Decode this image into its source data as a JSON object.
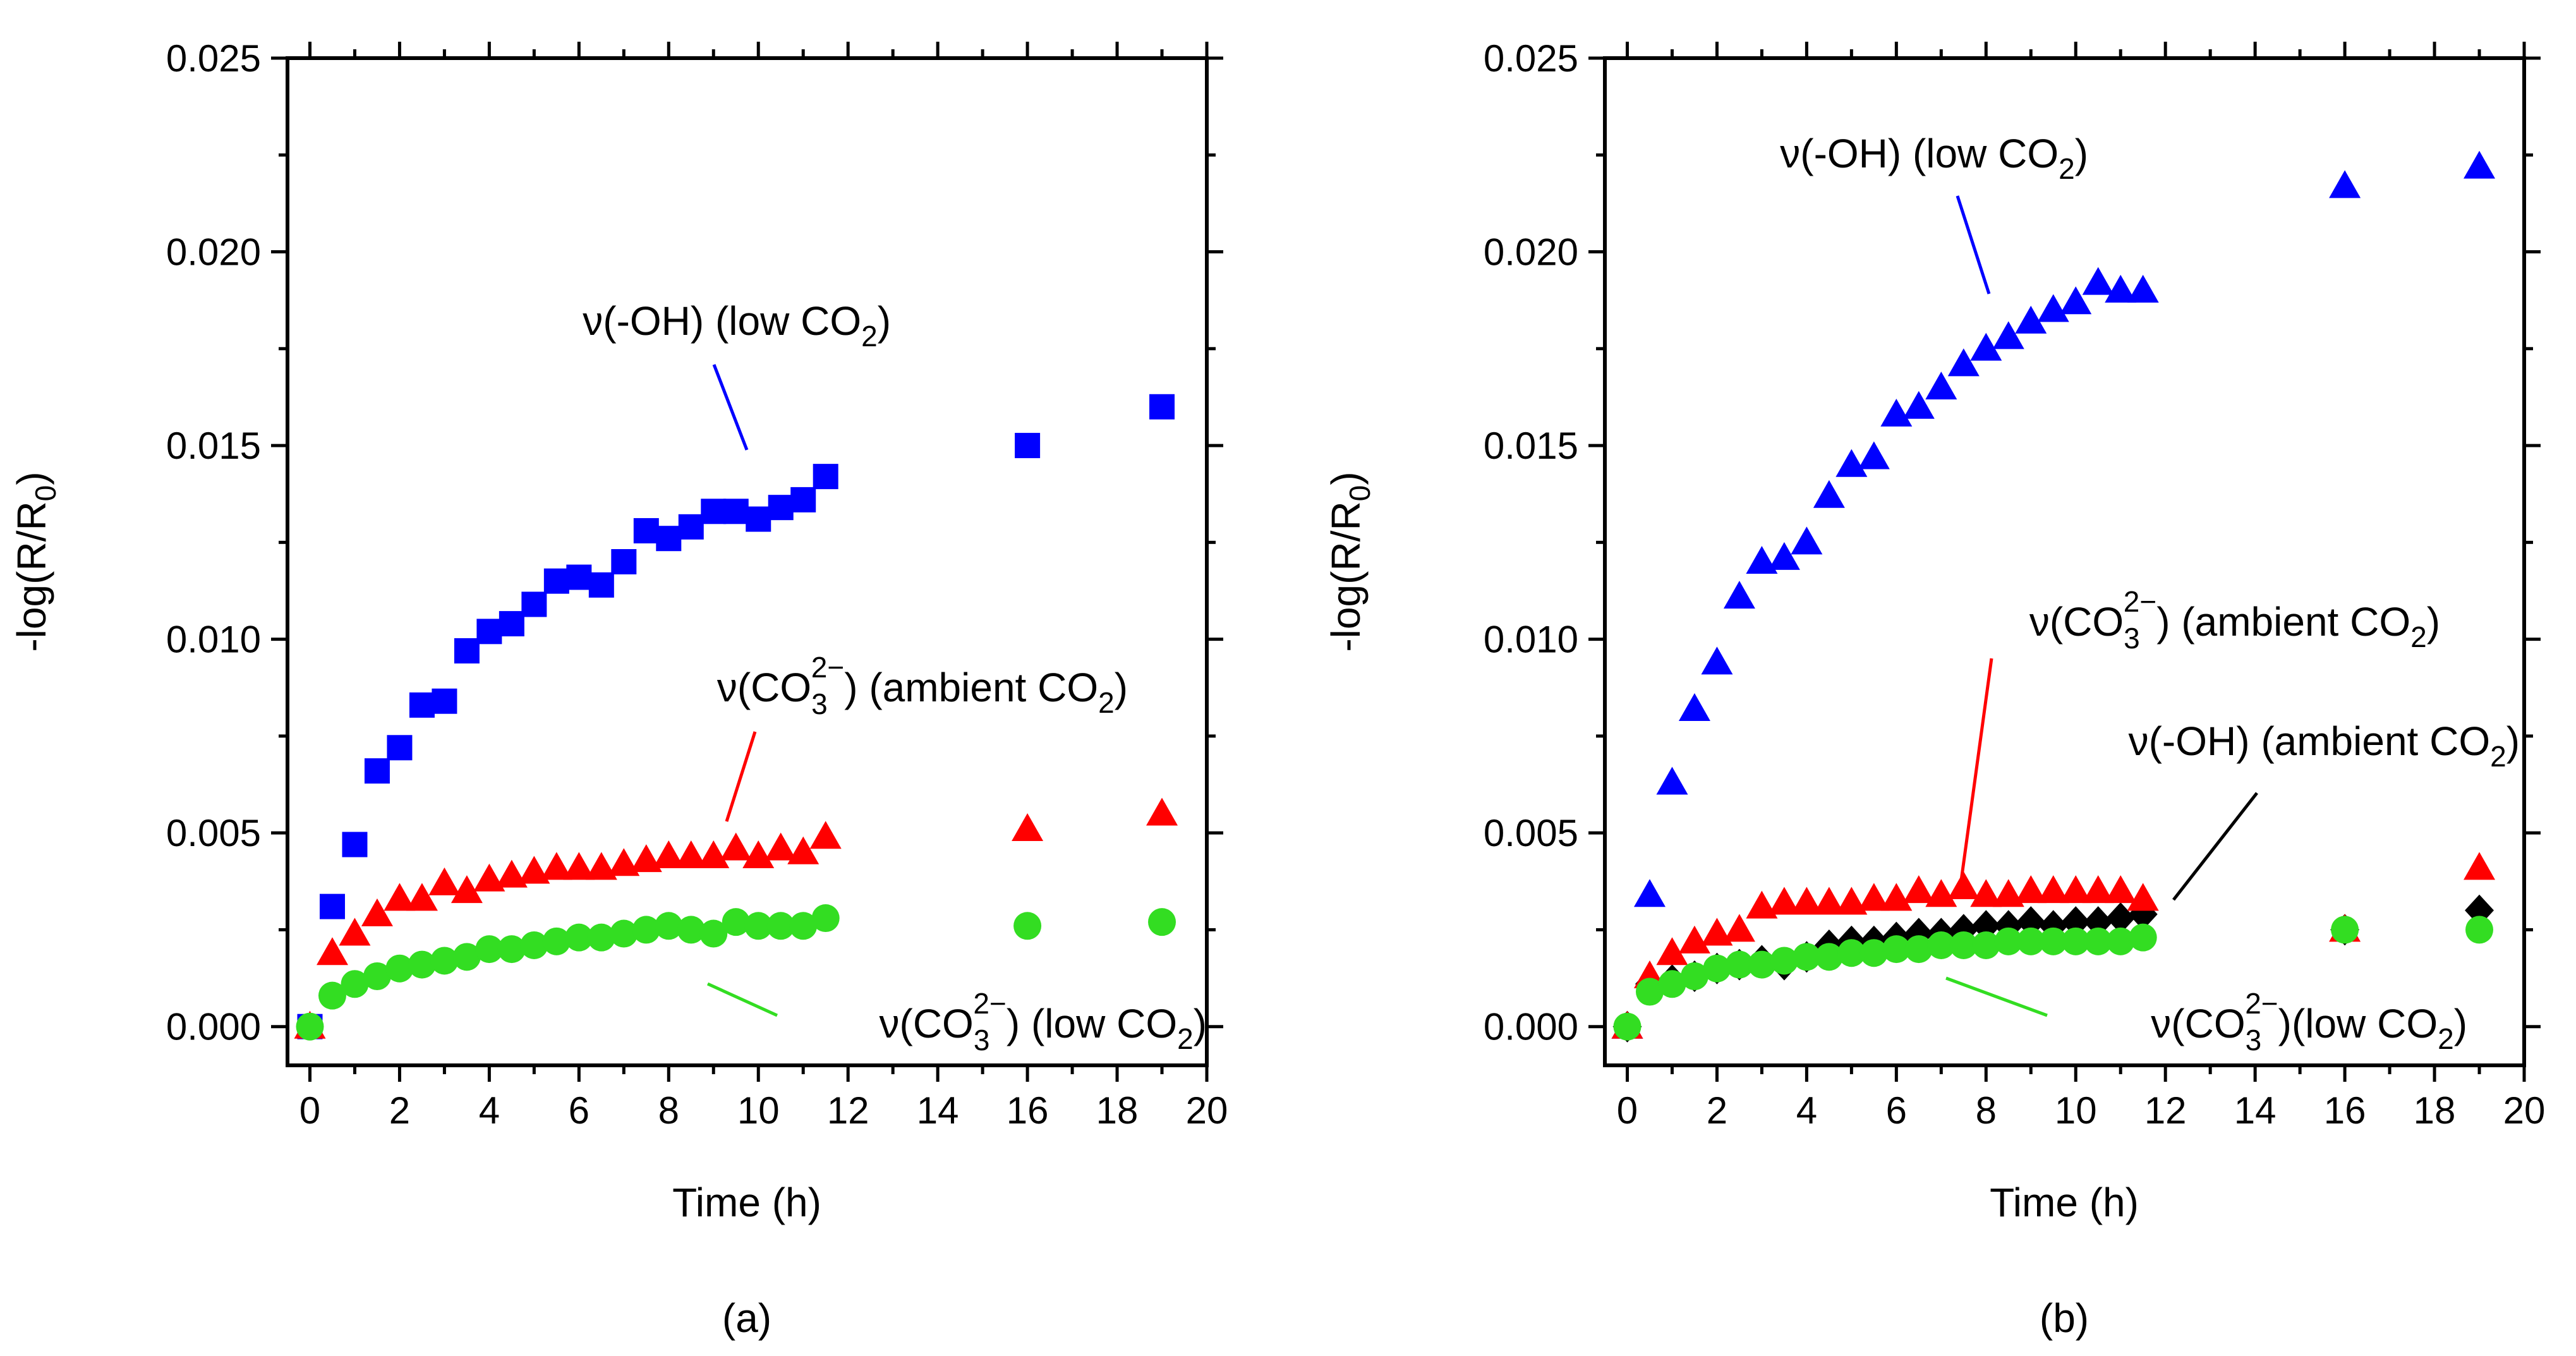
{
  "chart_data": [
    {
      "type": "scatter",
      "caption": "(a)",
      "xlabel": "Time (h)",
      "ylabel": "-log(R/R",
      "ylabel_sub": "0",
      "xlim": [
        -0.5,
        20
      ],
      "ylim": [
        -0.001,
        0.025
      ],
      "xticks": [
        0,
        2,
        4,
        6,
        8,
        10,
        12,
        14,
        16,
        18,
        20
      ],
      "yticks": [
        "0.000",
        "0.005",
        "0.010",
        "0.015",
        "0.020",
        "0.025"
      ],
      "grid": false,
      "series": [
        {
          "marker": "square",
          "color": "#0000ff",
          "points": [
            [
              0,
              0
            ],
            [
              0.5,
              0.0031
            ],
            [
              1,
              0.0047
            ],
            [
              1.5,
              0.0066
            ],
            [
              2,
              0.0072
            ],
            [
              2.5,
              0.0083
            ],
            [
              3,
              0.0084
            ],
            [
              3.5,
              0.0097
            ],
            [
              4,
              0.0102
            ],
            [
              4.5,
              0.0104
            ],
            [
              5,
              0.0109
            ],
            [
              5.5,
              0.0115
            ],
            [
              6,
              0.0116
            ],
            [
              6.5,
              0.0114
            ],
            [
              7,
              0.012
            ],
            [
              7.5,
              0.0128
            ],
            [
              8,
              0.0126
            ],
            [
              8.5,
              0.0129
            ],
            [
              9,
              0.0133
            ],
            [
              9.5,
              0.0133
            ],
            [
              10,
              0.0131
            ],
            [
              10.5,
              0.0134
            ],
            [
              11,
              0.0136
            ],
            [
              11.5,
              0.0142
            ],
            [
              16,
              0.015
            ],
            [
              19,
              0.016
            ]
          ]
        },
        {
          "marker": "triangle",
          "color": "#ff0000",
          "points": [
            [
              0,
              0
            ],
            [
              0.5,
              0.0019
            ],
            [
              1,
              0.0024
            ],
            [
              1.5,
              0.0029
            ],
            [
              2,
              0.0033
            ],
            [
              2.5,
              0.0033
            ],
            [
              3,
              0.0037
            ],
            [
              3.5,
              0.0035
            ],
            [
              4,
              0.0038
            ],
            [
              4.5,
              0.0039
            ],
            [
              5,
              0.004
            ],
            [
              5.5,
              0.0041
            ],
            [
              6,
              0.0041
            ],
            [
              6.5,
              0.0041
            ],
            [
              7,
              0.0042
            ],
            [
              7.5,
              0.0043
            ],
            [
              8,
              0.0044
            ],
            [
              8.5,
              0.0044
            ],
            [
              9,
              0.0044
            ],
            [
              9.5,
              0.0046
            ],
            [
              10,
              0.0044
            ],
            [
              10.5,
              0.0046
            ],
            [
              11,
              0.0045
            ],
            [
              11.5,
              0.0049
            ],
            [
              16,
              0.0051
            ],
            [
              19,
              0.0055
            ]
          ]
        },
        {
          "marker": "circle",
          "color": "#33dd22",
          "points": [
            [
              0,
              0
            ],
            [
              0.5,
              0.0008
            ],
            [
              1,
              0.0011
            ],
            [
              1.5,
              0.0013
            ],
            [
              2,
              0.0015
            ],
            [
              2.5,
              0.0016
            ],
            [
              3,
              0.0017
            ],
            [
              3.5,
              0.0018
            ],
            [
              4,
              0.002
            ],
            [
              4.5,
              0.002
            ],
            [
              5,
              0.0021
            ],
            [
              5.5,
              0.0022
            ],
            [
              6,
              0.0023
            ],
            [
              6.5,
              0.0023
            ],
            [
              7,
              0.0024
            ],
            [
              7.5,
              0.0025
            ],
            [
              8,
              0.0026
            ],
            [
              8.5,
              0.0025
            ],
            [
              9,
              0.0024
            ],
            [
              9.5,
              0.0027
            ],
            [
              10,
              0.0026
            ],
            [
              10.5,
              0.0026
            ],
            [
              11,
              0.0026
            ],
            [
              11.5,
              0.0028
            ],
            [
              16,
              0.0026
            ],
            [
              19,
              0.0027
            ]
          ]
        }
      ],
      "annotations": [
        {
          "parts": [
            "ν(-OH) (low CO",
            "2",
            ")"
          ],
          "color": "#0000ff"
        },
        {
          "parts": [
            "ν(CO",
            "3",
            "2−",
            ") (ambient CO",
            "2",
            ")"
          ],
          "color": "#ff0000"
        },
        {
          "parts": [
            "ν(CO",
            "3",
            "2−",
            ") (low CO",
            "2",
            ")"
          ],
          "color": "#33dd22"
        }
      ]
    },
    {
      "type": "scatter",
      "caption": "(b)",
      "xlabel": "Time (h)",
      "ylabel": "-log(R/R",
      "ylabel_sub": "0",
      "xlim": [
        -0.5,
        20
      ],
      "ylim": [
        -0.001,
        0.025
      ],
      "xticks": [
        0,
        2,
        4,
        6,
        8,
        10,
        12,
        14,
        16,
        18,
        20
      ],
      "yticks": [
        "0.000",
        "0.005",
        "0.010",
        "0.015",
        "0.020",
        "0.025"
      ],
      "grid": false,
      "series": [
        {
          "marker": "triangle",
          "color": "#0000ff",
          "points": [
            [
              0,
              0
            ],
            [
              0.5,
              0.0034
            ],
            [
              1,
              0.0063
            ],
            [
              1.5,
              0.0082
            ],
            [
              2,
              0.0094
            ],
            [
              2.5,
              0.0111
            ],
            [
              3,
              0.012
            ],
            [
              3.5,
              0.0121
            ],
            [
              4,
              0.0125
            ],
            [
              4.5,
              0.0137
            ],
            [
              5,
              0.0145
            ],
            [
              5.5,
              0.0147
            ],
            [
              6,
              0.0158
            ],
            [
              6.5,
              0.016
            ],
            [
              7,
              0.0165
            ],
            [
              7.5,
              0.0171
            ],
            [
              8,
              0.0175
            ],
            [
              8.5,
              0.0178
            ],
            [
              9,
              0.0182
            ],
            [
              9.5,
              0.0185
            ],
            [
              10,
              0.0187
            ],
            [
              10.5,
              0.0192
            ],
            [
              11,
              0.019
            ],
            [
              11.5,
              0.019
            ],
            [
              16,
              0.0217
            ],
            [
              19,
              0.0222
            ]
          ]
        },
        {
          "marker": "diamond",
          "color": "#000000",
          "points": [
            [
              0,
              0
            ],
            [
              0.5,
              0.0011
            ],
            [
              1,
              0.0012
            ],
            [
              1.5,
              0.0013
            ],
            [
              2,
              0.0015
            ],
            [
              2.5,
              0.0016
            ],
            [
              3,
              0.0017
            ],
            [
              3.5,
              0.0016
            ],
            [
              4,
              0.0018
            ],
            [
              4.5,
              0.0021
            ],
            [
              5,
              0.0022
            ],
            [
              5.5,
              0.0022
            ],
            [
              6,
              0.0023
            ],
            [
              6.5,
              0.0024
            ],
            [
              7,
              0.0024
            ],
            [
              7.5,
              0.0025
            ],
            [
              8,
              0.0026
            ],
            [
              8.5,
              0.0026
            ],
            [
              9,
              0.0027
            ],
            [
              9.5,
              0.0026
            ],
            [
              10,
              0.0027
            ],
            [
              10.5,
              0.0027
            ],
            [
              11,
              0.0028
            ],
            [
              11.5,
              0.0029
            ],
            [
              16,
              0.0025
            ],
            [
              19,
              0.003
            ]
          ]
        },
        {
          "marker": "triangle",
          "color": "#ff0000",
          "points": [
            [
              0,
              0
            ],
            [
              0.5,
              0.0013
            ],
            [
              1,
              0.0019
            ],
            [
              1.5,
              0.0022
            ],
            [
              2,
              0.0024
            ],
            [
              2.5,
              0.0025
            ],
            [
              3,
              0.0031
            ],
            [
              3.5,
              0.0032
            ],
            [
              4,
              0.0032
            ],
            [
              4.5,
              0.0032
            ],
            [
              5,
              0.0032
            ],
            [
              5.5,
              0.0033
            ],
            [
              6,
              0.0033
            ],
            [
              6.5,
              0.0035
            ],
            [
              7,
              0.0034
            ],
            [
              7.5,
              0.0036
            ],
            [
              8,
              0.0034
            ],
            [
              8.5,
              0.0034
            ],
            [
              9,
              0.0035
            ],
            [
              9.5,
              0.0035
            ],
            [
              10,
              0.0035
            ],
            [
              10.5,
              0.0035
            ],
            [
              11,
              0.0035
            ],
            [
              11.5,
              0.0033
            ],
            [
              16,
              0.0025
            ],
            [
              19,
              0.0041
            ]
          ]
        },
        {
          "marker": "circle",
          "color": "#33dd22",
          "points": [
            [
              0,
              0
            ],
            [
              0.5,
              0.0009
            ],
            [
              1,
              0.0011
            ],
            [
              1.5,
              0.0013
            ],
            [
              2,
              0.0015
            ],
            [
              2.5,
              0.0016
            ],
            [
              3,
              0.0016
            ],
            [
              3.5,
              0.0017
            ],
            [
              4,
              0.0018
            ],
            [
              4.5,
              0.0018
            ],
            [
              5,
              0.0019
            ],
            [
              5.5,
              0.0019
            ],
            [
              6,
              0.002
            ],
            [
              6.5,
              0.002
            ],
            [
              7,
              0.0021
            ],
            [
              7.5,
              0.0021
            ],
            [
              8,
              0.0021
            ],
            [
              8.5,
              0.0022
            ],
            [
              9,
              0.0022
            ],
            [
              9.5,
              0.0022
            ],
            [
              10,
              0.0022
            ],
            [
              10.5,
              0.0022
            ],
            [
              11,
              0.0022
            ],
            [
              11.5,
              0.0023
            ],
            [
              16,
              0.0025
            ],
            [
              19,
              0.0025
            ]
          ]
        }
      ],
      "annotations": [
        {
          "parts": [
            "ν(-OH) (low CO",
            "2",
            ")"
          ],
          "color": "#0000ff"
        },
        {
          "parts": [
            "ν(CO",
            "3",
            "2−",
            ") (ambient CO",
            "2",
            ")"
          ],
          "color": "#ff0000"
        },
        {
          "parts": [
            "ν(-OH) (ambient CO",
            "2",
            ")"
          ],
          "color": "#000000"
        },
        {
          "parts": [
            "ν(CO",
            "3",
            "2−",
            ")(low CO",
            "2",
            ")"
          ],
          "color": "#33dd22"
        }
      ]
    }
  ]
}
